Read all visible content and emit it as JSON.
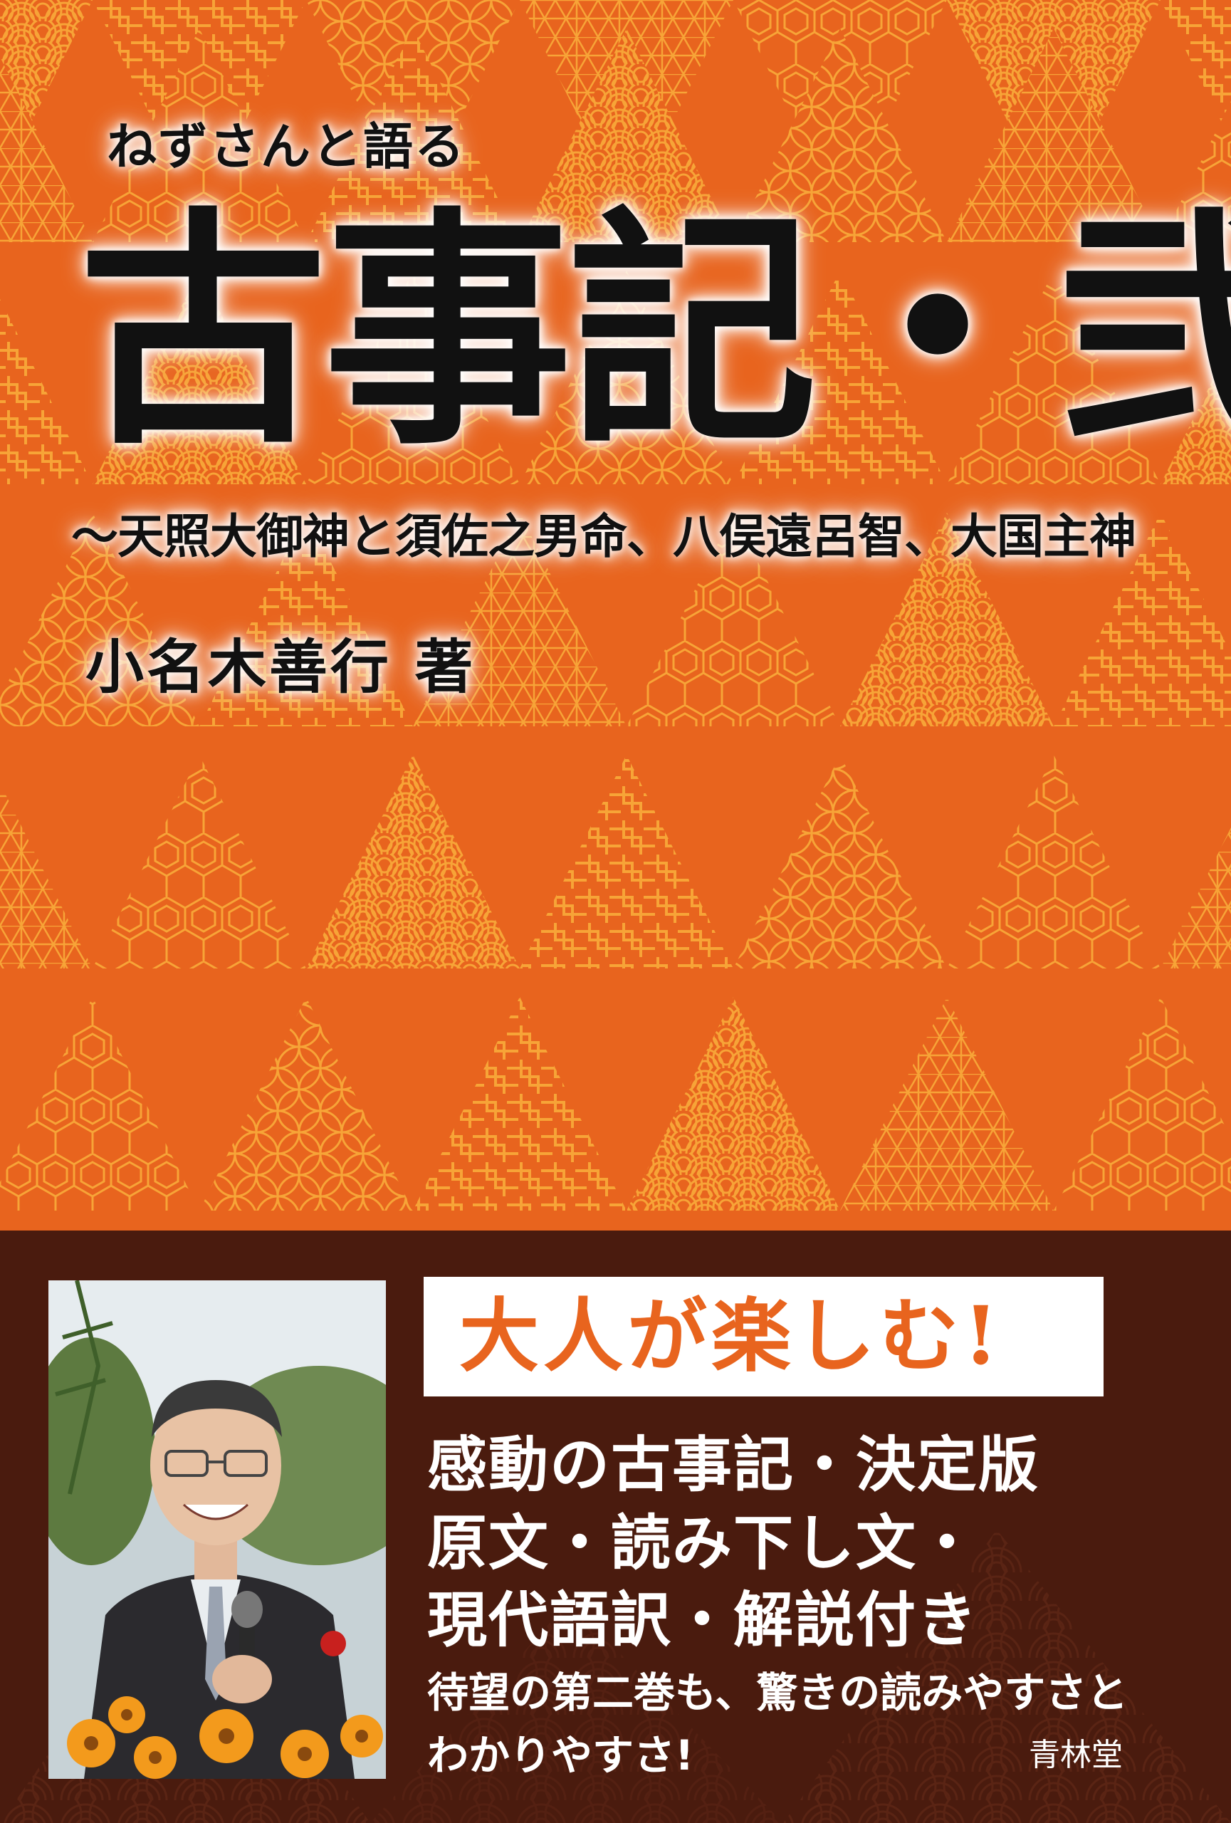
{
  "cover": {
    "series_title": "ねずさんと語る",
    "main_title": "古事記・弐",
    "subtitle": "〜天照大御神と須佐之男命、八俣遠呂智、大国主神",
    "author": "小名木善行 著"
  },
  "band": {
    "catchphrase": "大人が楽しむ!",
    "features": [
      "感動の古事記・決定版",
      "原文・読み下し文・",
      "現代語訳・解説付き"
    ],
    "description": [
      "待望の第二巻も、驚きの読みやすさと",
      "わかりやすさ!"
    ],
    "publisher": "青林堂"
  },
  "colors": {
    "cover_orange": "#e8641e",
    "pattern_gold": "#f7a437",
    "band_brown": "#4a1b0e",
    "title_black": "#111111",
    "catch_orange": "#e8641e"
  },
  "icons": {
    "author_photo": "author-photo"
  }
}
